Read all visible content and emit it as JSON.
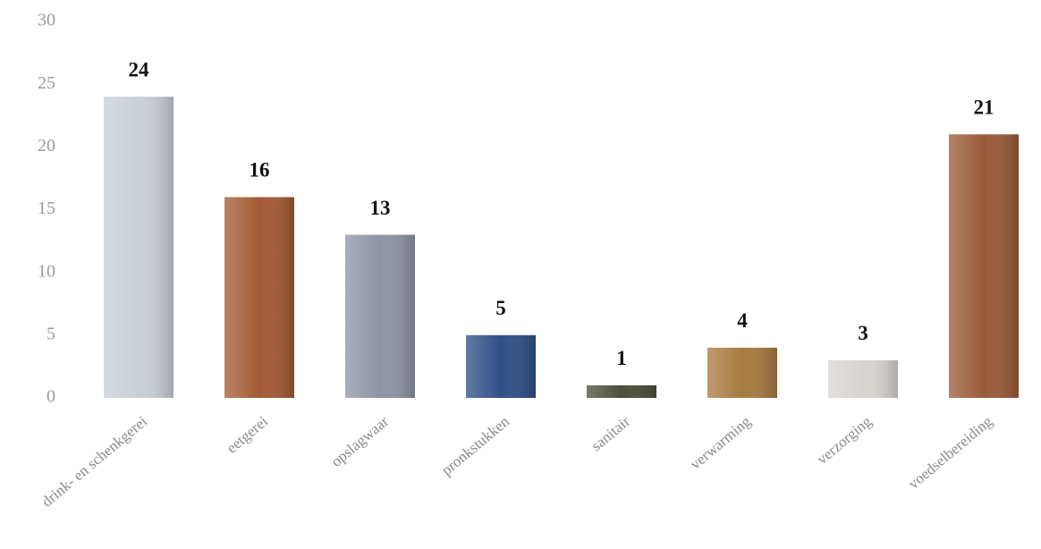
{
  "chart_data": {
    "type": "bar",
    "categories": [
      "drink- en schenkgerei",
      "eetgerei",
      "opslagwaar",
      "pronkstukken",
      "sanitair",
      "verwarming",
      "verzorging",
      "voedselbereiding"
    ],
    "values": [
      24,
      16,
      13,
      5,
      1,
      4,
      3,
      21
    ],
    "colors": [
      "#c9cfd6",
      "#a35a33",
      "#8e93a6",
      "#2f4f86",
      "#4a4f3a",
      "#a77a3f",
      "#d8d4d0",
      "#9a5a38"
    ],
    "ylim": [
      0,
      30
    ],
    "yticks": [
      0,
      5,
      10,
      15,
      20,
      25,
      30
    ],
    "grid": false
  }
}
